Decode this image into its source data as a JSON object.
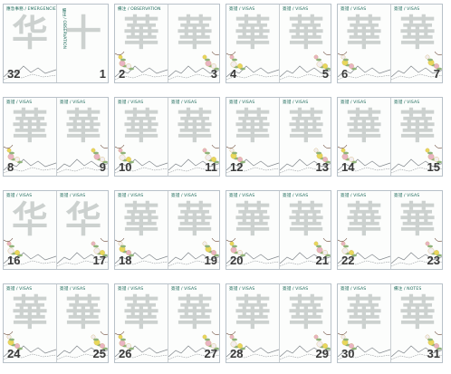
{
  "colors": {
    "border": "#b8c1c9",
    "header_text": "#1f6b5c",
    "glyph": "#c4cac8",
    "page_number": "#3a3a3a",
    "flower_yellow": "#e8d85a",
    "flower_pink": "#e9b3c3",
    "flower_white": "#f3eef0",
    "leaf": "#8fb37a",
    "mountain_line": "#7f858a"
  },
  "spreads": [
    {
      "left": {
        "header": "應急事務 / EMERGENCIES",
        "glyph": "华",
        "number": "32",
        "scene": "stamp"
      },
      "right": {
        "header": "備注 / OBSERVATION",
        "header_vertical": true,
        "glyph": "十",
        "number": "1",
        "scene": "plain"
      }
    },
    {
      "left": {
        "header": "備注 / OBSERVATION",
        "glyph": "華",
        "number": "2",
        "scene": "flowers"
      },
      "right": {
        "header": "",
        "glyph": "華",
        "number": "3",
        "scene": "flowers"
      }
    },
    {
      "left": {
        "header": "簽證 / VISAS",
        "glyph": "華",
        "number": "4",
        "scene": "flowers"
      },
      "right": {
        "header": "簽證 / VISAS",
        "glyph": "華",
        "number": "5",
        "scene": "flowers"
      }
    },
    {
      "left": {
        "header": "簽證 / VISAS",
        "glyph": "華",
        "number": "6",
        "scene": "flowers"
      },
      "right": {
        "header": "簽證 / VISAS",
        "glyph": "華",
        "number": "7",
        "scene": "flowers"
      }
    },
    {
      "left": {
        "header": "簽證 / VISAS",
        "glyph": "華",
        "number": "8",
        "scene": "flowers"
      },
      "right": {
        "header": "簽證 / VISAS",
        "glyph": "華",
        "number": "9",
        "scene": "flowers"
      }
    },
    {
      "left": {
        "header": "簽證 / VISAS",
        "glyph": "華",
        "number": "10",
        "scene": "flowers"
      },
      "right": {
        "header": "簽證 / VISAS",
        "glyph": "華",
        "number": "11",
        "scene": "flowers"
      }
    },
    {
      "left": {
        "header": "簽證 / VISAS",
        "glyph": "華",
        "number": "12",
        "scene": "flowers"
      },
      "right": {
        "header": "簽證 / VISAS",
        "glyph": "華",
        "number": "13",
        "scene": "flowers"
      }
    },
    {
      "left": {
        "header": "簽證 / VISAS",
        "glyph": "華",
        "number": "14",
        "scene": "flowers"
      },
      "right": {
        "header": "簽證 / VISAS",
        "glyph": "華",
        "number": "15",
        "scene": "flowers"
      }
    },
    {
      "left": {
        "header": "簽證 / VISAS",
        "glyph": "华",
        "number": "16",
        "scene": "flowers"
      },
      "right": {
        "header": "簽證 / VISAS",
        "glyph": "华",
        "number": "17",
        "scene": "flowers"
      }
    },
    {
      "left": {
        "header": "簽證 / VISAS",
        "glyph": "華",
        "number": "18",
        "scene": "flowers"
      },
      "right": {
        "header": "簽證 / VISAS",
        "glyph": "華",
        "number": "19",
        "scene": "flowers"
      }
    },
    {
      "left": {
        "header": "簽證 / VISAS",
        "glyph": "華",
        "number": "20",
        "scene": "flowers"
      },
      "right": {
        "header": "簽證 / VISAS",
        "glyph": "華",
        "number": "21",
        "scene": "flowers"
      }
    },
    {
      "left": {
        "header": "簽證 / VISAS",
        "glyph": "華",
        "number": "22",
        "scene": "flowers"
      },
      "right": {
        "header": "簽證 / VISAS",
        "glyph": "華",
        "number": "23",
        "scene": "flowers"
      }
    },
    {
      "left": {
        "header": "簽證 / VISAS",
        "glyph": "華",
        "number": "24",
        "scene": "flowers"
      },
      "right": {
        "header": "簽證 / VISAS",
        "glyph": "華",
        "number": "25",
        "scene": "flowers"
      }
    },
    {
      "left": {
        "header": "簽證 / VISAS",
        "glyph": "華",
        "number": "26",
        "scene": "flowers"
      },
      "right": {
        "header": "簽證 / VISAS",
        "glyph": "華",
        "number": "27",
        "scene": "flowers"
      }
    },
    {
      "left": {
        "header": "簽證 / VISAS",
        "glyph": "華",
        "number": "28",
        "scene": "flowers"
      },
      "right": {
        "header": "簽證 / VISAS",
        "glyph": "華",
        "number": "29",
        "scene": "flowers"
      }
    },
    {
      "left": {
        "header": "簽證 / VISAS",
        "glyph": "華",
        "number": "30",
        "scene": "flowers"
      },
      "right": {
        "header": "備注 / NOTES",
        "glyph": "華",
        "number": "31",
        "scene": "flowers"
      }
    }
  ]
}
